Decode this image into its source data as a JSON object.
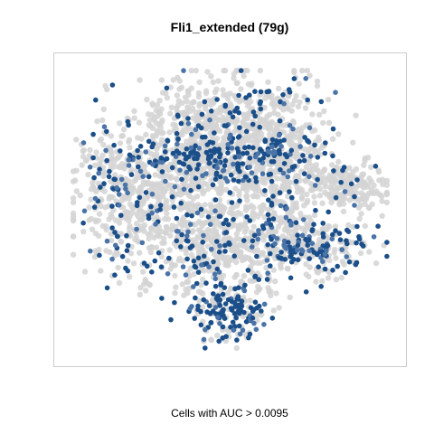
{
  "chart_data": {
    "type": "scatter",
    "title": "Fli1_extended (79g)",
    "caption": "Cells with AUC > 0.0095",
    "xlabel": "",
    "ylabel": "",
    "axes_shown": false,
    "grid": false,
    "legend": "none",
    "x_range": [
      -40,
      40
    ],
    "y_range": [
      -40,
      40
    ],
    "colors": {
      "background_cells": "#d3d3d3",
      "highlight_cells": "#1b4f8a",
      "highlight_light": "#4a74a8",
      "panel_border": "#cccccc"
    },
    "clusters": [
      {
        "label": "top",
        "x": -1.5,
        "y": 25,
        "sx": 10,
        "sy": 6,
        "n": 420,
        "frac_highlight": 0.15
      },
      {
        "label": "left",
        "x": -26,
        "y": 4,
        "sx": 6,
        "sy": 10,
        "n": 300,
        "frac_highlight": 0.2
      },
      {
        "label": "center",
        "x": -6,
        "y": 6,
        "sx": 12,
        "sy": 10,
        "n": 700,
        "frac_highlight": 0.14
      },
      {
        "label": "mid-band",
        "x": -4,
        "y": 14,
        "sx": 13,
        "sy": 3,
        "n": 300,
        "frac_highlight": 0.48
      },
      {
        "label": "right-center",
        "x": 13,
        "y": 13,
        "sx": 6,
        "sy": 10,
        "n": 320,
        "frac_highlight": 0.18
      },
      {
        "label": "right-lobe",
        "x": 29,
        "y": 6,
        "sx": 4.5,
        "sy": 3.5,
        "n": 180,
        "frac_highlight": 0.06
      },
      {
        "label": "lower-center",
        "x": -1,
        "y": -12,
        "sx": 11,
        "sy": 6,
        "n": 420,
        "frac_highlight": 0.22
      },
      {
        "label": "lower-right",
        "x": 21,
        "y": -10,
        "sx": 7,
        "sy": 4,
        "n": 220,
        "frac_highlight": 0.48
      },
      {
        "label": "bottom",
        "x": 0,
        "y": -28,
        "sx": 4.5,
        "sy": 4,
        "n": 180,
        "frac_highlight": 0.55
      }
    ]
  }
}
